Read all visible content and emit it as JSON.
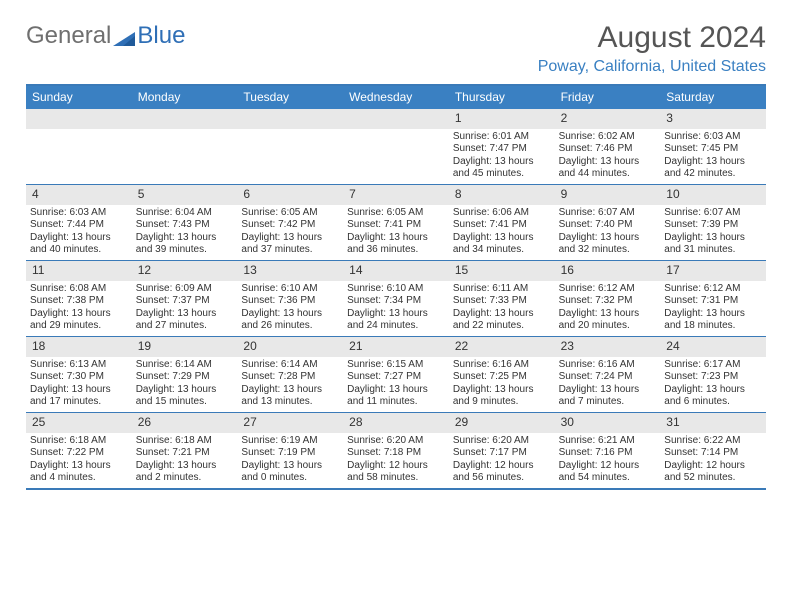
{
  "brand": {
    "general": "General",
    "blue": "Blue"
  },
  "title": "August 2024",
  "location": "Poway, California, United States",
  "colors": {
    "header_bg": "#3a80c2",
    "rule": "#3a7ab8",
    "daynum_bg": "#e8e8e8",
    "text": "#333333",
    "location": "#3a80c2"
  },
  "day_names": [
    "Sunday",
    "Monday",
    "Tuesday",
    "Wednesday",
    "Thursday",
    "Friday",
    "Saturday"
  ],
  "weeks": [
    [
      {
        "blank": true
      },
      {
        "blank": true
      },
      {
        "blank": true
      },
      {
        "blank": true
      },
      {
        "day": "1",
        "sunrise": "Sunrise: 6:01 AM",
        "sunset": "Sunset: 7:47 PM",
        "daylight": "Daylight: 13 hours and 45 minutes."
      },
      {
        "day": "2",
        "sunrise": "Sunrise: 6:02 AM",
        "sunset": "Sunset: 7:46 PM",
        "daylight": "Daylight: 13 hours and 44 minutes."
      },
      {
        "day": "3",
        "sunrise": "Sunrise: 6:03 AM",
        "sunset": "Sunset: 7:45 PM",
        "daylight": "Daylight: 13 hours and 42 minutes."
      }
    ],
    [
      {
        "day": "4",
        "sunrise": "Sunrise: 6:03 AM",
        "sunset": "Sunset: 7:44 PM",
        "daylight": "Daylight: 13 hours and 40 minutes."
      },
      {
        "day": "5",
        "sunrise": "Sunrise: 6:04 AM",
        "sunset": "Sunset: 7:43 PM",
        "daylight": "Daylight: 13 hours and 39 minutes."
      },
      {
        "day": "6",
        "sunrise": "Sunrise: 6:05 AM",
        "sunset": "Sunset: 7:42 PM",
        "daylight": "Daylight: 13 hours and 37 minutes."
      },
      {
        "day": "7",
        "sunrise": "Sunrise: 6:05 AM",
        "sunset": "Sunset: 7:41 PM",
        "daylight": "Daylight: 13 hours and 36 minutes."
      },
      {
        "day": "8",
        "sunrise": "Sunrise: 6:06 AM",
        "sunset": "Sunset: 7:41 PM",
        "daylight": "Daylight: 13 hours and 34 minutes."
      },
      {
        "day": "9",
        "sunrise": "Sunrise: 6:07 AM",
        "sunset": "Sunset: 7:40 PM",
        "daylight": "Daylight: 13 hours and 32 minutes."
      },
      {
        "day": "10",
        "sunrise": "Sunrise: 6:07 AM",
        "sunset": "Sunset: 7:39 PM",
        "daylight": "Daylight: 13 hours and 31 minutes."
      }
    ],
    [
      {
        "day": "11",
        "sunrise": "Sunrise: 6:08 AM",
        "sunset": "Sunset: 7:38 PM",
        "daylight": "Daylight: 13 hours and 29 minutes."
      },
      {
        "day": "12",
        "sunrise": "Sunrise: 6:09 AM",
        "sunset": "Sunset: 7:37 PM",
        "daylight": "Daylight: 13 hours and 27 minutes."
      },
      {
        "day": "13",
        "sunrise": "Sunrise: 6:10 AM",
        "sunset": "Sunset: 7:36 PM",
        "daylight": "Daylight: 13 hours and 26 minutes."
      },
      {
        "day": "14",
        "sunrise": "Sunrise: 6:10 AM",
        "sunset": "Sunset: 7:34 PM",
        "daylight": "Daylight: 13 hours and 24 minutes."
      },
      {
        "day": "15",
        "sunrise": "Sunrise: 6:11 AM",
        "sunset": "Sunset: 7:33 PM",
        "daylight": "Daylight: 13 hours and 22 minutes."
      },
      {
        "day": "16",
        "sunrise": "Sunrise: 6:12 AM",
        "sunset": "Sunset: 7:32 PM",
        "daylight": "Daylight: 13 hours and 20 minutes."
      },
      {
        "day": "17",
        "sunrise": "Sunrise: 6:12 AM",
        "sunset": "Sunset: 7:31 PM",
        "daylight": "Daylight: 13 hours and 18 minutes."
      }
    ],
    [
      {
        "day": "18",
        "sunrise": "Sunrise: 6:13 AM",
        "sunset": "Sunset: 7:30 PM",
        "daylight": "Daylight: 13 hours and 17 minutes."
      },
      {
        "day": "19",
        "sunrise": "Sunrise: 6:14 AM",
        "sunset": "Sunset: 7:29 PM",
        "daylight": "Daylight: 13 hours and 15 minutes."
      },
      {
        "day": "20",
        "sunrise": "Sunrise: 6:14 AM",
        "sunset": "Sunset: 7:28 PM",
        "daylight": "Daylight: 13 hours and 13 minutes."
      },
      {
        "day": "21",
        "sunrise": "Sunrise: 6:15 AM",
        "sunset": "Sunset: 7:27 PM",
        "daylight": "Daylight: 13 hours and 11 minutes."
      },
      {
        "day": "22",
        "sunrise": "Sunrise: 6:16 AM",
        "sunset": "Sunset: 7:25 PM",
        "daylight": "Daylight: 13 hours and 9 minutes."
      },
      {
        "day": "23",
        "sunrise": "Sunrise: 6:16 AM",
        "sunset": "Sunset: 7:24 PM",
        "daylight": "Daylight: 13 hours and 7 minutes."
      },
      {
        "day": "24",
        "sunrise": "Sunrise: 6:17 AM",
        "sunset": "Sunset: 7:23 PM",
        "daylight": "Daylight: 13 hours and 6 minutes."
      }
    ],
    [
      {
        "day": "25",
        "sunrise": "Sunrise: 6:18 AM",
        "sunset": "Sunset: 7:22 PM",
        "daylight": "Daylight: 13 hours and 4 minutes."
      },
      {
        "day": "26",
        "sunrise": "Sunrise: 6:18 AM",
        "sunset": "Sunset: 7:21 PM",
        "daylight": "Daylight: 13 hours and 2 minutes."
      },
      {
        "day": "27",
        "sunrise": "Sunrise: 6:19 AM",
        "sunset": "Sunset: 7:19 PM",
        "daylight": "Daylight: 13 hours and 0 minutes."
      },
      {
        "day": "28",
        "sunrise": "Sunrise: 6:20 AM",
        "sunset": "Sunset: 7:18 PM",
        "daylight": "Daylight: 12 hours and 58 minutes."
      },
      {
        "day": "29",
        "sunrise": "Sunrise: 6:20 AM",
        "sunset": "Sunset: 7:17 PM",
        "daylight": "Daylight: 12 hours and 56 minutes."
      },
      {
        "day": "30",
        "sunrise": "Sunrise: 6:21 AM",
        "sunset": "Sunset: 7:16 PM",
        "daylight": "Daylight: 12 hours and 54 minutes."
      },
      {
        "day": "31",
        "sunrise": "Sunrise: 6:22 AM",
        "sunset": "Sunset: 7:14 PM",
        "daylight": "Daylight: 12 hours and 52 minutes."
      }
    ]
  ]
}
